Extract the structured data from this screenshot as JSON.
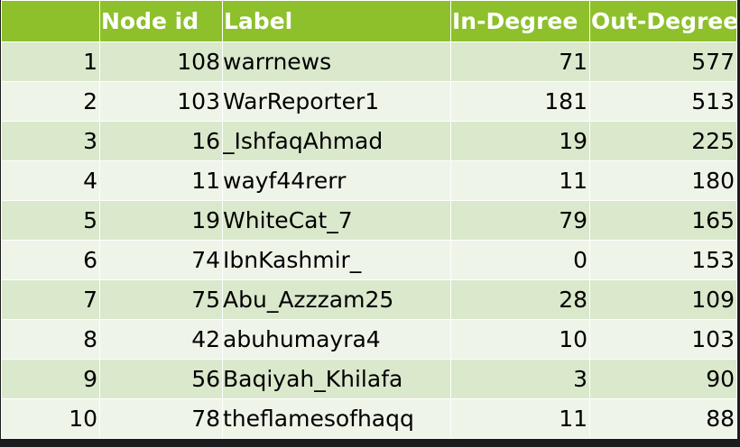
{
  "table": {
    "headers": [
      "",
      "Node id",
      "Label",
      "In-Degree",
      "Out-Degree"
    ],
    "rows": [
      {
        "rank": "1",
        "node_id": "108",
        "label": "warrnews",
        "in_degree": "71",
        "out_degree": "577"
      },
      {
        "rank": "2",
        "node_id": "103",
        "label": "WarReporter1",
        "in_degree": "181",
        "out_degree": "513"
      },
      {
        "rank": "3",
        "node_id": "16",
        "label": "_IshfaqAhmad",
        "in_degree": "19",
        "out_degree": "225"
      },
      {
        "rank": "4",
        "node_id": "11",
        "label": "wayf44rerr",
        "in_degree": "11",
        "out_degree": "180"
      },
      {
        "rank": "5",
        "node_id": "19",
        "label": "WhiteCat_7",
        "in_degree": "79",
        "out_degree": "165"
      },
      {
        "rank": "6",
        "node_id": "74",
        "label": "IbnKashmir_",
        "in_degree": "0",
        "out_degree": "153"
      },
      {
        "rank": "7",
        "node_id": "75",
        "label": "Abu_Azzzam25",
        "in_degree": "28",
        "out_degree": "109"
      },
      {
        "rank": "8",
        "node_id": "42",
        "label": "abuhumayra4",
        "in_degree": "10",
        "out_degree": "103"
      },
      {
        "rank": "9",
        "node_id": "56",
        "label": "Baqiyah_Khilafa",
        "in_degree": "3",
        "out_degree": "90"
      },
      {
        "rank": "10",
        "node_id": "78",
        "label": "theflamesofhaqq",
        "in_degree": "11",
        "out_degree": "88"
      }
    ]
  },
  "colors": {
    "header_bg": "#8dc02a",
    "row_odd": "#dae8cc",
    "row_even": "#eef4e8"
  }
}
